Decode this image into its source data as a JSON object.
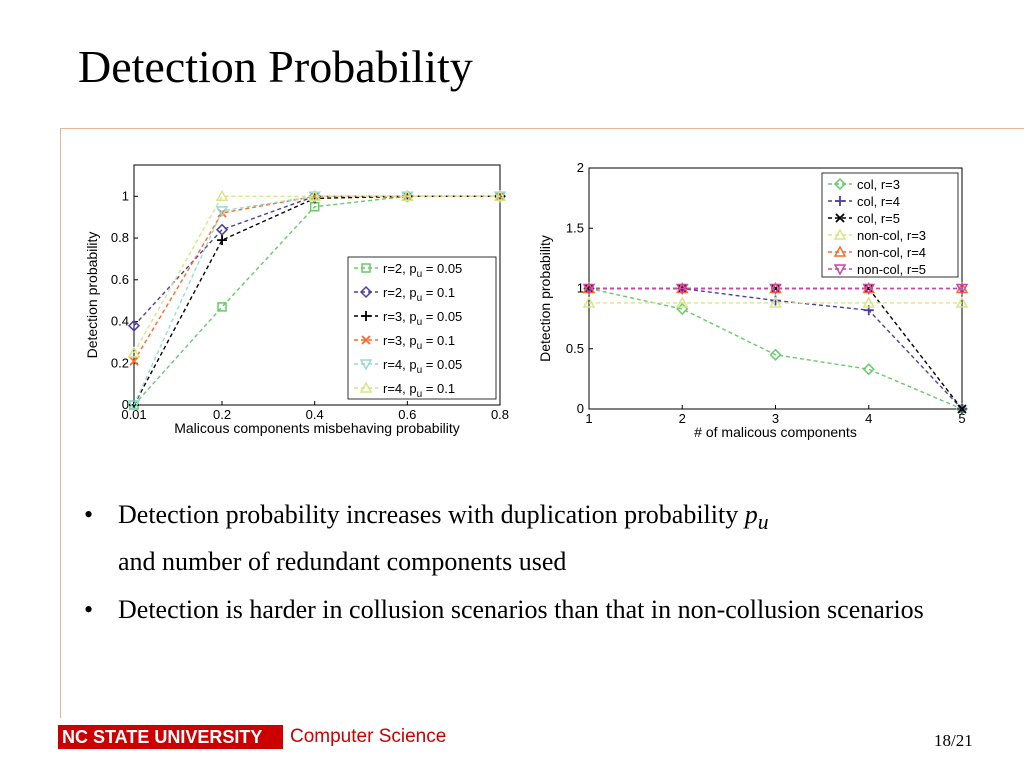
{
  "slide": {
    "title": "Detection Probability",
    "bullets": [
      {
        "text": "Detection probability increases with duplication probability ",
        "var": "p",
        "sub": "u",
        "text2": "and number of redundant components used"
      },
      {
        "text": "Detection is harder in collusion scenarios than that in non-collusion scenarios"
      }
    ],
    "bullet_symbol": "•",
    "footer": {
      "university": "NC STATE UNIVERSITY",
      "department": "Computer Science",
      "page": "18/21"
    },
    "colors": {
      "brand_red": "#cc0000",
      "rule": "#e9b49a"
    }
  },
  "chart_data": [
    {
      "type": "line",
      "xlabel": "Malicous components misbehaving probability",
      "ylabel": "Detection probability",
      "x": [
        0.01,
        0.2,
        0.4,
        0.6,
        0.8
      ],
      "xticks": [
        "0.01",
        "0.2",
        "0.4",
        "0.6",
        "0.8"
      ],
      "yticks": [
        "0",
        "0.2",
        "0.4",
        "0.6",
        "0.8",
        "1"
      ],
      "xlim": [
        0.01,
        0.8
      ],
      "ylim": [
        0,
        1.15
      ],
      "legend_position": "bottom-right",
      "series": [
        {
          "name": "r=2, p",
          "sub": "u",
          "suffix": " = 0.05",
          "color": "#66cc66",
          "marker": "square",
          "values": [
            0.0,
            0.47,
            0.95,
            1.0,
            1.0
          ]
        },
        {
          "name": "r=2, p",
          "sub": "u",
          "suffix": " = 0.1",
          "color": "#4b3fa6",
          "marker": "diamond",
          "values": [
            0.38,
            0.84,
            1.0,
            1.0,
            1.0
          ]
        },
        {
          "name": "r=3, p",
          "sub": "u",
          "suffix": " = 0.05",
          "color": "#000000",
          "marker": "plus",
          "values": [
            0.0,
            0.79,
            0.99,
            1.0,
            1.0
          ]
        },
        {
          "name": "r=3, p",
          "sub": "u",
          "suffix": " = 0.1",
          "color": "#ff6a2a",
          "marker": "x",
          "values": [
            0.21,
            0.92,
            1.0,
            1.0,
            1.0
          ]
        },
        {
          "name": "r=4, p",
          "sub": "u",
          "suffix": " = 0.05",
          "color": "#9ad9cf",
          "marker": "triangle-down",
          "values": [
            0.0,
            0.93,
            1.0,
            1.0,
            1.0
          ]
        },
        {
          "name": "r=4, p",
          "sub": "u",
          "suffix": " = 0.1",
          "color": "#d8e58a",
          "marker": "triangle-up",
          "values": [
            0.25,
            1.0,
            1.0,
            1.0,
            1.0
          ]
        }
      ]
    },
    {
      "type": "line",
      "xlabel": "# of malicous components",
      "ylabel": "Detection probability",
      "x": [
        1,
        2,
        3,
        4,
        5
      ],
      "xticks": [
        "1",
        "2",
        "3",
        "4",
        "5"
      ],
      "yticks": [
        "0",
        "0.5",
        "1",
        "1.5",
        "2"
      ],
      "xlim": [
        1,
        5
      ],
      "ylim": [
        0,
        2
      ],
      "legend_position": "top-right",
      "series": [
        {
          "name": "col, r=3",
          "color": "#66cc66",
          "marker": "diamond",
          "values": [
            1.0,
            0.83,
            0.45,
            0.33,
            0.0
          ]
        },
        {
          "name": "col, r=4",
          "color": "#4b3fa6",
          "marker": "plus",
          "values": [
            1.0,
            1.0,
            0.9,
            0.82,
            0.0
          ]
        },
        {
          "name": "col, r=5",
          "color": "#000000",
          "marker": "x",
          "values": [
            1.0,
            1.0,
            1.0,
            1.0,
            0.0
          ]
        },
        {
          "name": "non-col, r=3",
          "color": "#d8e58a",
          "marker": "triangle-up",
          "values": [
            0.88,
            0.88,
            0.88,
            0.88,
            0.88
          ]
        },
        {
          "name": "non-col, r=4",
          "color": "#ff6a2a",
          "marker": "triangle-up",
          "values": [
            1.0,
            1.0,
            1.0,
            1.0,
            1.0
          ]
        },
        {
          "name": "non-col, r=5",
          "color": "#cc44aa",
          "marker": "triangle-down",
          "values": [
            1.0,
            1.0,
            1.0,
            1.0,
            1.0
          ]
        }
      ]
    }
  ]
}
